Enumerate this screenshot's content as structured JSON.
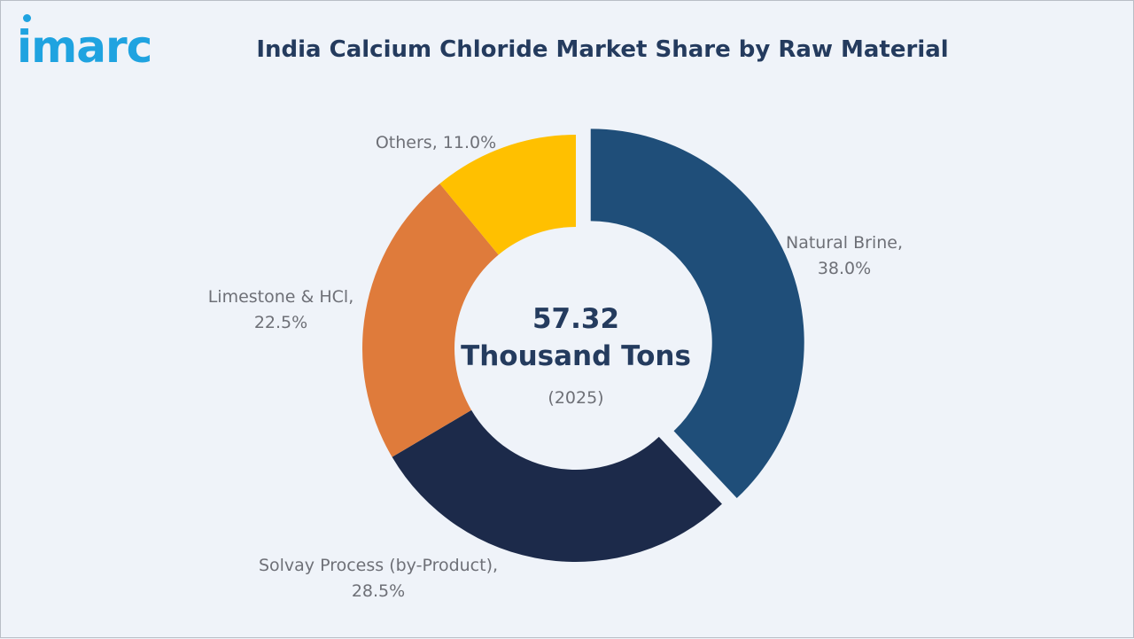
{
  "brand": {
    "logo_text": "imarc"
  },
  "chart_data": {
    "type": "pie",
    "variant": "donut",
    "title": "India Calcium Chloride Market Share by Raw Material",
    "center": {
      "value": "57.32",
      "unit": "Thousand Tons",
      "year": "(2025)"
    },
    "slices": [
      {
        "name": "Natural Brine",
        "value": 38.0,
        "label_lines": [
          "Natural Brine,",
          "38.0%"
        ],
        "color": "#1f4e79",
        "exploded": true
      },
      {
        "name": "Solvay Process (by-Product)",
        "value": 28.5,
        "label_lines": [
          "Solvay Process (by-Product),",
          "28.5%"
        ],
        "color": "#1c2a4a",
        "exploded": false
      },
      {
        "name": "Limestone & HCl",
        "value": 22.5,
        "label_lines": [
          "Limestone & HCl,",
          "22.5%"
        ],
        "color": "#df7b3b",
        "exploded": false
      },
      {
        "name": "Others",
        "value": 11.0,
        "label_lines": [
          "Others, 11.0%"
        ],
        "color": "#ffc000",
        "exploded": false
      }
    ]
  }
}
